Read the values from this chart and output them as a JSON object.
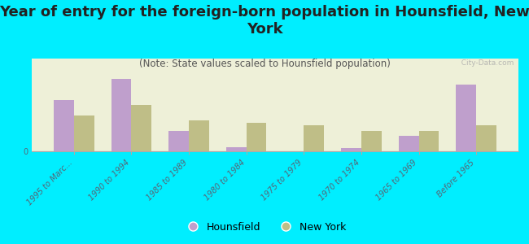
{
  "title": "Year of entry for the foreign-born population in Hounsfield, New\nYork",
  "subtitle": "(Note: State values scaled to Hounsfield population)",
  "categories": [
    "1995 to Marc...",
    "1990 to 1994",
    "1985 to 1989",
    "1980 to 1984",
    "1975 to 1979",
    "1970 to 1974",
    "1965 to 1969",
    "Before 1965"
  ],
  "hounsfield": [
    5,
    7,
    2,
    0.4,
    0,
    0.3,
    1.5,
    6.5
  ],
  "new_york": [
    3.5,
    4.5,
    3.0,
    2.8,
    2.5,
    2.0,
    2.0,
    2.5
  ],
  "hounsfield_color": "#bf9fcc",
  "new_york_color": "#bfbe87",
  "background_color": "#00eeff",
  "plot_bg_color": "#eef0d8",
  "bar_width": 0.35,
  "ylim": [
    0,
    9
  ],
  "title_fontsize": 13,
  "subtitle_fontsize": 8.5,
  "tick_fontsize": 7,
  "legend_fontsize": 9,
  "watermark": "  City-Data.com"
}
